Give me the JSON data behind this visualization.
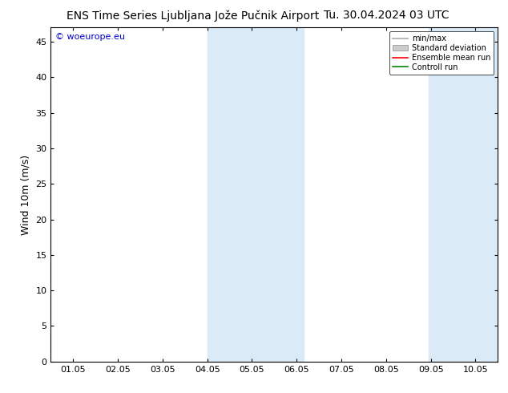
{
  "title_left": "ENS Time Series Ljubljana Jože Pučnik Airport",
  "title_right": "Tu. 30.04.2024 03 UTC",
  "ylabel": "Wind 10m (m/s)",
  "ylim": [
    0,
    47
  ],
  "yticks": [
    0,
    5,
    10,
    15,
    20,
    25,
    30,
    35,
    40,
    45
  ],
  "xlim_start": -0.5,
  "xlim_end": 9.5,
  "xtick_labels": [
    "01.05",
    "02.05",
    "03.05",
    "04.05",
    "05.05",
    "06.05",
    "07.05",
    "08.05",
    "09.05",
    "10.05"
  ],
  "xtick_positions": [
    0,
    1,
    2,
    3,
    4,
    5,
    6,
    7,
    8,
    9
  ],
  "shaded_regions": [
    {
      "xmin": 3.0,
      "xmax": 5.15,
      "color": "#daeaf7"
    },
    {
      "xmin": 7.95,
      "xmax": 9.5,
      "color": "#daeaf7"
    }
  ],
  "watermark": "© woeurope.eu",
  "background_color": "#ffffff",
  "plot_bg_color": "#ffffff",
  "border_color": "#000000",
  "legend_items": [
    {
      "label": "min/max",
      "color": "#aaaaaa",
      "lw": 1.2,
      "style": "line"
    },
    {
      "label": "Standard deviation",
      "color": "#cccccc",
      "lw": 5,
      "style": "band"
    },
    {
      "label": "Ensemble mean run",
      "color": "#ff0000",
      "lw": 1.2,
      "style": "line"
    },
    {
      "label": "Controll run",
      "color": "#008800",
      "lw": 1.2,
      "style": "line"
    }
  ],
  "title_fontsize": 10,
  "tick_fontsize": 8,
  "ylabel_fontsize": 9,
  "watermark_fontsize": 8
}
